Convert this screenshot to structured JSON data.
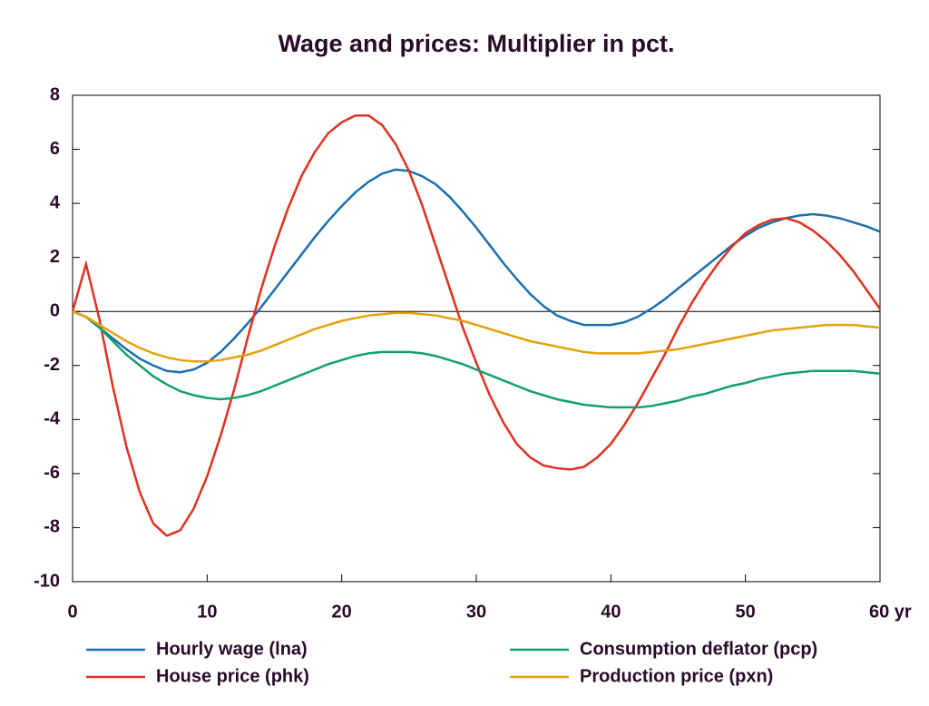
{
  "chart_data": {
    "type": "line",
    "title": "Wage and prices: Multiplier in pct.",
    "x": [
      0,
      1,
      2,
      3,
      4,
      5,
      6,
      7,
      8,
      9,
      10,
      11,
      12,
      13,
      14,
      15,
      16,
      17,
      18,
      19,
      20,
      21,
      22,
      23,
      24,
      25,
      26,
      27,
      28,
      29,
      30,
      31,
      32,
      33,
      34,
      35,
      36,
      37,
      38,
      39,
      40,
      41,
      42,
      43,
      44,
      45,
      46,
      47,
      48,
      49,
      50,
      51,
      52,
      53,
      54,
      55,
      56,
      57,
      58,
      59,
      60
    ],
    "series": [
      {
        "name": "Hourly wage (lna)",
        "color": "#1a6faf",
        "values": [
          0,
          -0.2,
          -0.6,
          -1.0,
          -1.4,
          -1.75,
          -2.0,
          -2.2,
          -2.25,
          -2.15,
          -1.9,
          -1.5,
          -1.0,
          -0.45,
          0.15,
          0.8,
          1.45,
          2.1,
          2.75,
          3.35,
          3.9,
          4.4,
          4.8,
          5.1,
          5.25,
          5.2,
          5.0,
          4.7,
          4.25,
          3.7,
          3.1,
          2.45,
          1.8,
          1.2,
          0.65,
          0.2,
          -0.15,
          -0.35,
          -0.5,
          -0.5,
          -0.5,
          -0.4,
          -0.2,
          0.1,
          0.45,
          0.85,
          1.25,
          1.65,
          2.05,
          2.45,
          2.8,
          3.1,
          3.3,
          3.45,
          3.55,
          3.6,
          3.55,
          3.45,
          3.3,
          3.15,
          2.95
        ]
      },
      {
        "name": "House price (phk)",
        "color": "#e0301e",
        "values": [
          0,
          1.75,
          -0.3,
          -2.8,
          -5,
          -6.7,
          -7.85,
          -8.3,
          -8.1,
          -7.3,
          -6.1,
          -4.6,
          -2.9,
          -1.0,
          0.8,
          2.4,
          3.8,
          5.0,
          5.9,
          6.6,
          7.0,
          7.25,
          7.25,
          6.9,
          6.2,
          5.2,
          3.9,
          2.4,
          0.9,
          -0.6,
          -1.9,
          -3.1,
          -4.1,
          -4.9,
          -5.4,
          -5.7,
          -5.8,
          -5.85,
          -5.75,
          -5.4,
          -4.9,
          -4.2,
          -3.4,
          -2.5,
          -1.6,
          -0.6,
          0.3,
          1.1,
          1.8,
          2.4,
          2.9,
          3.2,
          3.4,
          3.45,
          3.3,
          3.0,
          2.6,
          2.1,
          1.5,
          0.8,
          0.1
        ]
      },
      {
        "name": "Consumption deflator (pcp)",
        "color": "#13a070",
        "values": [
          0,
          -0.2,
          -0.6,
          -1.1,
          -1.6,
          -2.0,
          -2.4,
          -2.7,
          -2.95,
          -3.1,
          -3.2,
          -3.25,
          -3.2,
          -3.1,
          -2.95,
          -2.75,
          -2.55,
          -2.35,
          -2.15,
          -1.95,
          -1.8,
          -1.65,
          -1.55,
          -1.5,
          -1.5,
          -1.5,
          -1.55,
          -1.65,
          -1.8,
          -1.95,
          -2.15,
          -2.35,
          -2.55,
          -2.75,
          -2.95,
          -3.1,
          -3.25,
          -3.35,
          -3.45,
          -3.5,
          -3.55,
          -3.55,
          -3.55,
          -3.5,
          -3.4,
          -3.3,
          -3.15,
          -3.05,
          -2.9,
          -2.75,
          -2.65,
          -2.5,
          -2.4,
          -2.3,
          -2.25,
          -2.2,
          -2.2,
          -2.2,
          -2.2,
          -2.25,
          -2.3
        ]
      },
      {
        "name": "Production price (pxn)",
        "color": "#e6a10a",
        "values": [
          0,
          -0.2,
          -0.5,
          -0.8,
          -1.1,
          -1.35,
          -1.55,
          -1.7,
          -1.8,
          -1.85,
          -1.85,
          -1.8,
          -1.7,
          -1.6,
          -1.45,
          -1.25,
          -1.05,
          -0.85,
          -0.65,
          -0.5,
          -0.35,
          -0.25,
          -0.15,
          -0.1,
          -0.05,
          -0.05,
          -0.1,
          -0.15,
          -0.25,
          -0.35,
          -0.5,
          -0.65,
          -0.8,
          -0.95,
          -1.1,
          -1.2,
          -1.3,
          -1.4,
          -1.5,
          -1.55,
          -1.55,
          -1.55,
          -1.55,
          -1.5,
          -1.45,
          -1.4,
          -1.3,
          -1.2,
          -1.1,
          -1.0,
          -0.9,
          -0.8,
          -0.7,
          -0.65,
          -0.6,
          -0.55,
          -0.5,
          -0.5,
          -0.5,
          -0.55,
          -0.6
        ]
      }
    ],
    "xlim": [
      0,
      60
    ],
    "xticks": [
      0,
      10,
      20,
      30,
      40,
      50,
      {
        "value": 60,
        "label": "60 yr"
      }
    ],
    "ylim": [
      -10,
      8
    ],
    "yticks": [
      -10,
      -8,
      -6,
      -4,
      -2,
      0,
      2,
      4,
      6,
      8
    ],
    "grid": false
  }
}
